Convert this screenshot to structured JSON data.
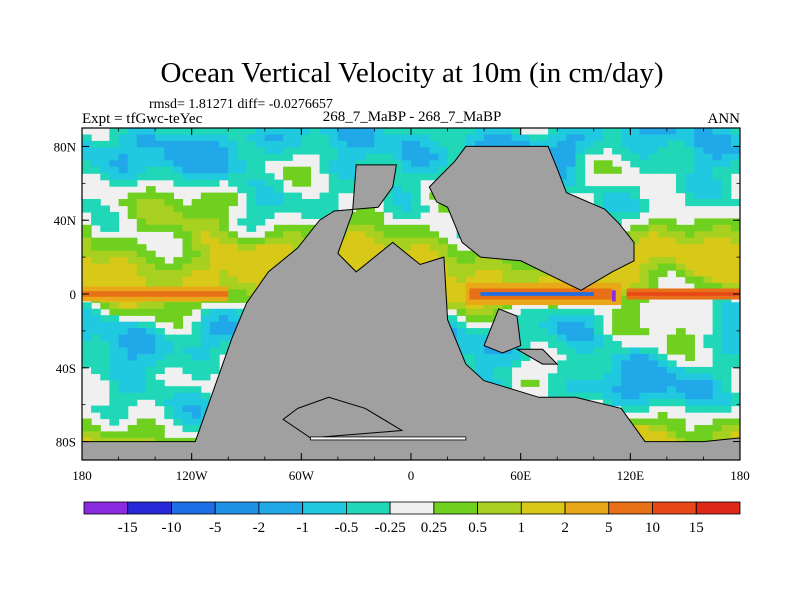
{
  "chart_data": {
    "type": "heatmap",
    "title": "Ocean Vertical Velocity at 10m (in cm/day)",
    "stats": "rmsd= 1.81271 diff= -0.0276657",
    "left_label": "Expt = tfGwc-teYec",
    "center_label": "268_7_MaBP - 268_7_MaBP",
    "right_label": "ANN",
    "x_ticks": [
      {
        "value": -180,
        "label": "180"
      },
      {
        "value": -120,
        "label": "120W"
      },
      {
        "value": -60,
        "label": "60W"
      },
      {
        "value": 0,
        "label": "0"
      },
      {
        "value": 60,
        "label": "60E"
      },
      {
        "value": 120,
        "label": "120E"
      },
      {
        "value": 180,
        "label": "180"
      }
    ],
    "y_ticks": [
      {
        "value": 80,
        "label": "80N"
      },
      {
        "value": 40,
        "label": "40N"
      },
      {
        "value": 0,
        "label": "0"
      },
      {
        "value": -40,
        "label": "40S"
      },
      {
        "value": -80,
        "label": "80S"
      }
    ],
    "xlim": [
      -180,
      180
    ],
    "ylim": [
      -90,
      90
    ],
    "levels": [
      "-15",
      "-10",
      "-5",
      "-2",
      "-1",
      "-0.5",
      "-0.25",
      "0.25",
      "0.5",
      "1",
      "2",
      "5",
      "10",
      "15"
    ],
    "colors": [
      "#8a2be2",
      "#2828d8",
      "#1e6ee6",
      "#1e90e6",
      "#20a8e8",
      "#20c8e0",
      "#20d8b8",
      "#f0f0f0",
      "#70d020",
      "#a8d020",
      "#d8c818",
      "#e8a818",
      "#e87018",
      "#e84818",
      "#e02818"
    ],
    "land_color": "#a0a0a0"
  }
}
